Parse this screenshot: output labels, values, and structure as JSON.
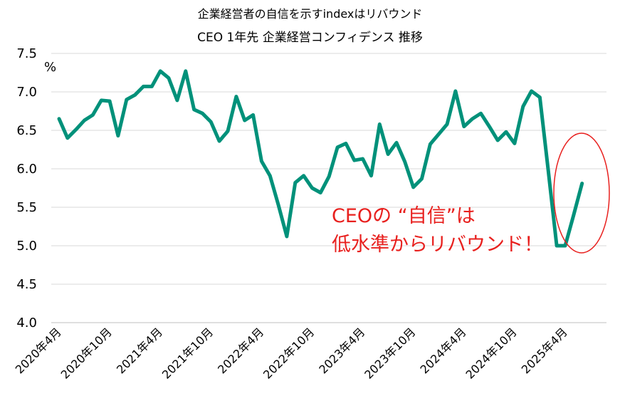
{
  "chart_data": {
    "type": "line",
    "title": "企業経営者の自信を示すindexはリバウンド",
    "subtitle": "CEO 1年先 企業経営コンフィデンス 推移",
    "ylabel": "%",
    "xlabel": "",
    "ylim": [
      4.0,
      7.5
    ],
    "yticks": [
      "4.0",
      "4.5",
      "5.0",
      "5.5",
      "6.0",
      "6.5",
      "7.0",
      "7.5"
    ],
    "grid": true,
    "legend": "none",
    "line_color": "#00917a",
    "highlight_color": "#e8201e",
    "x_tick_labels": [
      "2020年4月",
      "2020年10月",
      "2021年4月",
      "2021年10月",
      "2022年4月",
      "2022年10月",
      "2023年4月",
      "2023年10月",
      "2024年4月",
      "2024年10月",
      "2025年4月"
    ],
    "x": [
      "2020-04",
      "2020-05",
      "2020-06",
      "2020-07",
      "2020-08",
      "2020-09",
      "2020-10",
      "2020-11",
      "2020-12",
      "2021-01",
      "2021-02",
      "2021-03",
      "2021-04",
      "2021-05",
      "2021-06",
      "2021-07",
      "2021-08",
      "2021-09",
      "2021-10",
      "2021-11",
      "2021-12",
      "2022-01",
      "2022-02",
      "2022-03",
      "2022-04",
      "2022-05",
      "2022-06",
      "2022-07",
      "2022-08",
      "2022-09",
      "2022-10",
      "2022-11",
      "2022-12",
      "2023-01",
      "2023-02",
      "2023-03",
      "2023-04",
      "2023-05",
      "2023-06",
      "2023-07",
      "2023-08",
      "2023-09",
      "2023-10",
      "2023-11",
      "2023-12",
      "2024-01",
      "2024-02",
      "2024-03",
      "2024-04",
      "2024-05",
      "2024-06",
      "2024-07",
      "2024-08",
      "2024-09",
      "2024-10",
      "2024-11",
      "2024-12",
      "2025-01",
      "2025-02",
      "2025-03",
      "2025-04",
      "2025-05",
      "2025-06"
    ],
    "series": [
      {
        "values": [
          6.65,
          6.4,
          6.51,
          6.63,
          6.7,
          6.89,
          6.88,
          6.43,
          6.9,
          6.96,
          7.07,
          7.07,
          7.27,
          7.18,
          6.89,
          7.27,
          6.77,
          6.72,
          6.61,
          6.36,
          6.49,
          6.94,
          6.63,
          6.7,
          6.1,
          5.91,
          5.53,
          5.12,
          5.82,
          5.91,
          5.75,
          5.69,
          5.9,
          6.28,
          6.33,
          6.11,
          6.13,
          5.91,
          6.58,
          6.19,
          6.34,
          6.09,
          5.76,
          5.87,
          6.32,
          6.45,
          6.58,
          7.01,
          6.55,
          6.65,
          6.72,
          6.55,
          6.37,
          6.48,
          6.33,
          6.81,
          7.01,
          6.93,
          5.97,
          5.0,
          5.0,
          5.4,
          5.81
        ]
      }
    ],
    "annotation": [
      "CEOの “自信”は",
      "低水準からリバウンド！"
    ]
  }
}
